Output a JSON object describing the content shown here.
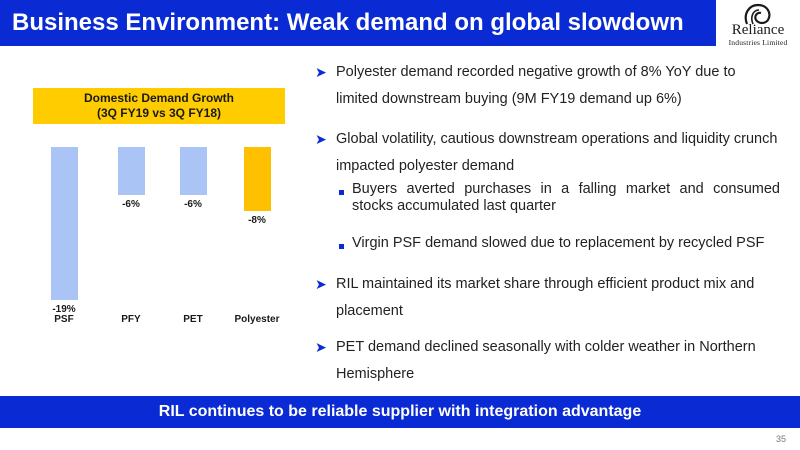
{
  "header": {
    "title": "Business Environment: Weak demand on global slowdown"
  },
  "logo": {
    "name": "Reliance",
    "subtitle": "Industries Limited"
  },
  "chart_data": {
    "type": "bar",
    "title_lines": [
      "Domestic Demand Growth",
      "(3Q FY19 vs 3Q FY18)"
    ],
    "categories": [
      "PSF",
      "PFY",
      "PET",
      "Polyester"
    ],
    "values": [
      -19,
      -6,
      -6,
      -8
    ],
    "value_labels": [
      "-19%",
      "-6%",
      "-6%",
      "-8%"
    ],
    "colors": [
      "#a9c4f5",
      "#a9c4f5",
      "#a9c4f5",
      "#ffc000"
    ]
  },
  "bullets": [
    {
      "text": "Polyester demand recorded negative growth of 8% YoY due to limited downstream buying (9M FY19 demand up 6%)"
    },
    {
      "text": "Global volatility, cautious downstream operations and liquidity crunch impacted polyester demand",
      "sub": [
        "Buyers averted purchases in a falling market and consumed stocks accumulated last quarter",
        "Virgin PSF demand slowed due to replacement by recycled PSF"
      ]
    },
    {
      "text": "RIL maintained its market share through efficient product mix and placement"
    },
    {
      "text": "PET demand declined seasonally with colder weather in Northern Hemisphere"
    }
  ],
  "footer": {
    "text": "RIL continues to be reliable supplier with integration advantage"
  },
  "page_number": "35"
}
